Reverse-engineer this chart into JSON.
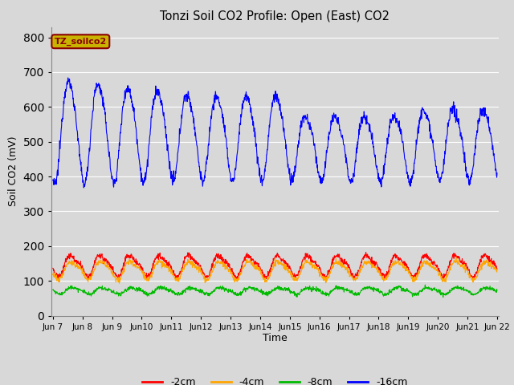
{
  "title": "Tonzi Soil CO2 Profile: Open (East) CO2",
  "xlabel": "Time",
  "ylabel": "Soil CO2 (mV)",
  "ylim": [
    0,
    830
  ],
  "yticks": [
    0,
    100,
    200,
    300,
    400,
    500,
    600,
    700,
    800
  ],
  "background_color": "#d8d8d8",
  "plot_bg_color": "#d8d8d8",
  "grid_color": "#ffffff",
  "colors": {
    "16cm": "#0000ff",
    "2cm": "#ff0000",
    "4cm": "#ffa500",
    "8cm": "#00bb00"
  },
  "legend_labels": [
    "-2cm",
    "-4cm",
    "-8cm",
    "-16cm"
  ],
  "legend_colors": [
    "#ff0000",
    "#ffa500",
    "#00bb00",
    "#0000ff"
  ],
  "annotation_text": "TZ_soilco2",
  "annotation_color": "#8b0000",
  "annotation_bg": "#c8b400",
  "n_points": 1440,
  "x_start": 7,
  "x_end": 22,
  "xtick_positions": [
    7,
    8,
    9,
    10,
    11,
    12,
    13,
    14,
    15,
    16,
    17,
    18,
    19,
    20,
    21,
    22
  ],
  "xtick_labels": [
    "Jun 7",
    "Jun 8",
    "Jun 9",
    "Jun 10",
    "Jun 11",
    "Jun 12",
    "Jun 13",
    "Jun 14",
    "Jun 15",
    "Jun 16",
    "Jun 17",
    "Jun 18",
    "Jun 19",
    "Jun 20",
    "Jun 21",
    "Jun 22"
  ]
}
